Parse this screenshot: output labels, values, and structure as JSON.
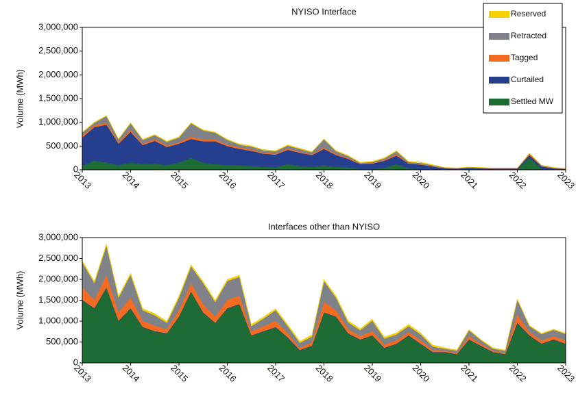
{
  "chart_data": [
    {
      "type": "stacked-area",
      "title": "NYISO Interface",
      "y_label": "Volume (MWh)",
      "legend": "top-right",
      "x": [
        2013,
        2013.25,
        2013.5,
        2013.75,
        2014,
        2014.25,
        2014.5,
        2014.75,
        2015,
        2015.25,
        2015.5,
        2015.75,
        2016,
        2016.25,
        2016.5,
        2016.75,
        2017,
        2017.25,
        2017.5,
        2017.75,
        2018,
        2018.25,
        2018.5,
        2018.75,
        2019,
        2019.25,
        2019.5,
        2019.75,
        2020,
        2020.25,
        2020.5,
        2020.75,
        2021,
        2021.25,
        2021.5,
        2021.75,
        2022,
        2022.25,
        2022.5,
        2022.75,
        2023
      ],
      "xlim": [
        2013,
        2023
      ],
      "xticks": [
        2013,
        2014,
        2015,
        2016,
        2017,
        2018,
        2019,
        2020,
        2021,
        2022,
        2023
      ],
      "ylim": [
        0,
        3000000
      ],
      "yticks": [
        0,
        {
          "value": 500000,
          "label": "500,000"
        },
        {
          "value": 1000000,
          "label": "1,000,000"
        },
        {
          "value": 1500000,
          "label": "1,500,000"
        },
        {
          "value": 2000000,
          "label": "2,000,000"
        },
        {
          "value": 2500000,
          "label": "2,500,000"
        },
        {
          "value": 3000000,
          "label": "3,000,000"
        }
      ],
      "series": [
        {
          "name": "Settled MW",
          "color": "#1e6b35",
          "values": [
            80000,
            200000,
            150000,
            100000,
            150000,
            120000,
            130000,
            100000,
            150000,
            250000,
            150000,
            120000,
            100000,
            90000,
            80000,
            60000,
            50000,
            120000,
            80000,
            60000,
            90000,
            60000,
            50000,
            20000,
            20000,
            40000,
            120000,
            30000,
            20000,
            10000,
            5000,
            5000,
            10000,
            5000,
            5000,
            5000,
            5000,
            250000,
            20000,
            10000,
            5000
          ]
        },
        {
          "name": "Curtailed",
          "color": "#253f8e",
          "values": [
            600000,
            700000,
            800000,
            450000,
            650000,
            400000,
            480000,
            380000,
            400000,
            400000,
            450000,
            480000,
            400000,
            350000,
            320000,
            280000,
            270000,
            300000,
            280000,
            250000,
            350000,
            250000,
            180000,
            100000,
            110000,
            150000,
            180000,
            100000,
            90000,
            60000,
            25000,
            20000,
            30000,
            25000,
            20000,
            20000,
            20000,
            60000,
            50000,
            20000,
            10000
          ]
        },
        {
          "name": "Tagged",
          "color": "#f26b21",
          "values": [
            40000,
            40000,
            40000,
            30000,
            40000,
            30000,
            40000,
            30000,
            30000,
            50000,
            40000,
            40000,
            30000,
            30000,
            30000,
            20000,
            20000,
            30000,
            20000,
            20000,
            30000,
            20000,
            20000,
            10000,
            10000,
            20000,
            30000,
            10000,
            10000,
            10000,
            5000,
            5000,
            5000,
            5000,
            5000,
            5000,
            5000,
            20000,
            10000,
            10000,
            5000
          ]
        },
        {
          "name": "Retracted",
          "color": "#7f8389",
          "values": [
            60000,
            50000,
            140000,
            60000,
            140000,
            80000,
            80000,
            80000,
            100000,
            280000,
            190000,
            140000,
            100000,
            60000,
            60000,
            50000,
            50000,
            60000,
            60000,
            40000,
            170000,
            60000,
            40000,
            15000,
            25000,
            30000,
            60000,
            25000,
            25000,
            15000,
            10000,
            5000,
            10000,
            10000,
            5000,
            5000,
            5000,
            15000,
            15000,
            5000,
            5000
          ]
        },
        {
          "name": "Reserved",
          "color": "#f5d000",
          "values": [
            15000,
            15000,
            15000,
            15000,
            15000,
            15000,
            15000,
            15000,
            15000,
            15000,
            15000,
            15000,
            15000,
            15000,
            15000,
            15000,
            15000,
            15000,
            15000,
            15000,
            15000,
            15000,
            15000,
            15000,
            15000,
            15000,
            15000,
            15000,
            15000,
            15000,
            5000,
            5000,
            5000,
            5000,
            5000,
            5000,
            5000,
            5000,
            5000,
            5000,
            5000
          ]
        }
      ]
    },
    {
      "type": "stacked-area",
      "title": "Interfaces other than NYISO",
      "y_label": "Volume (MWh)",
      "x": [
        2013,
        2013.25,
        2013.5,
        2013.75,
        2014,
        2014.25,
        2014.5,
        2014.75,
        2015,
        2015.25,
        2015.5,
        2015.75,
        2016,
        2016.25,
        2016.5,
        2016.75,
        2017,
        2017.25,
        2017.5,
        2017.75,
        2018,
        2018.25,
        2018.5,
        2018.75,
        2019,
        2019.25,
        2019.5,
        2019.75,
        2020,
        2020.25,
        2020.5,
        2020.75,
        2021,
        2021.25,
        2021.5,
        2021.75,
        2022,
        2022.25,
        2022.5,
        2022.75,
        2023
      ],
      "xlim": [
        2013,
        2023
      ],
      "xticks": [
        2013,
        2014,
        2015,
        2016,
        2017,
        2018,
        2019,
        2020,
        2021,
        2022,
        2023
      ],
      "ylim": [
        0,
        3000000
      ],
      "yticks": [
        0,
        {
          "value": 500000,
          "label": "500,000"
        },
        {
          "value": 1000000,
          "label": "1,000,000"
        },
        {
          "value": 1500000,
          "label": "1,500,000"
        },
        {
          "value": 2000000,
          "label": "2,000,000"
        },
        {
          "value": 2500000,
          "label": "2,500,000"
        },
        {
          "value": 3000000,
          "label": "3,000,000"
        }
      ],
      "series": [
        {
          "color": "#1e6b35",
          "values": [
            1500000,
            1300000,
            1800000,
            1000000,
            1300000,
            850000,
            750000,
            700000,
            1100000,
            1700000,
            1200000,
            950000,
            1300000,
            1400000,
            650000,
            750000,
            850000,
            600000,
            300000,
            400000,
            1200000,
            1100000,
            700000,
            550000,
            650000,
            350000,
            450000,
            650000,
            450000,
            250000,
            250000,
            200000,
            550000,
            400000,
            250000,
            200000,
            950000,
            650000,
            450000,
            550000,
            450000
          ]
        },
        {
          "color": "#253f8e",
          "values": [
            10000,
            10000,
            10000,
            10000,
            10000,
            10000,
            10000,
            10000,
            10000,
            10000,
            10000,
            10000,
            10000,
            10000,
            10000,
            10000,
            10000,
            10000,
            10000,
            10000,
            10000,
            10000,
            10000,
            10000,
            10000,
            10000,
            10000,
            10000,
            10000,
            10000,
            10000,
            10000,
            10000,
            10000,
            10000,
            10000,
            10000,
            10000,
            10000,
            10000,
            10000
          ]
        },
        {
          "color": "#f26b21",
          "values": [
            300000,
            200000,
            300000,
            200000,
            250000,
            150000,
            130000,
            100000,
            150000,
            200000,
            200000,
            150000,
            200000,
            200000,
            100000,
            120000,
            150000,
            100000,
            50000,
            80000,
            250000,
            150000,
            100000,
            80000,
            100000,
            80000,
            80000,
            80000,
            80000,
            50000,
            30000,
            30000,
            80000,
            50000,
            30000,
            30000,
            200000,
            80000,
            80000,
            80000,
            80000
          ]
        },
        {
          "color": "#7f8389",
          "values": [
            600000,
            400000,
            700000,
            350000,
            550000,
            250000,
            250000,
            150000,
            300000,
            400000,
            500000,
            350000,
            450000,
            450000,
            120000,
            180000,
            250000,
            170000,
            120000,
            140000,
            500000,
            300000,
            160000,
            140000,
            250000,
            140000,
            140000,
            140000,
            140000,
            80000,
            50000,
            50000,
            140000,
            80000,
            50000,
            50000,
            350000,
            140000,
            150000,
            150000,
            150000
          ]
        },
        {
          "color": "#f5d000",
          "values": [
            40000,
            40000,
            40000,
            40000,
            40000,
            40000,
            40000,
            40000,
            40000,
            40000,
            40000,
            40000,
            40000,
            40000,
            40000,
            40000,
            40000,
            40000,
            40000,
            40000,
            40000,
            40000,
            40000,
            40000,
            40000,
            40000,
            40000,
            40000,
            40000,
            40000,
            20000,
            20000,
            20000,
            20000,
            20000,
            20000,
            20000,
            20000,
            20000,
            20000,
            20000
          ]
        }
      ]
    }
  ]
}
